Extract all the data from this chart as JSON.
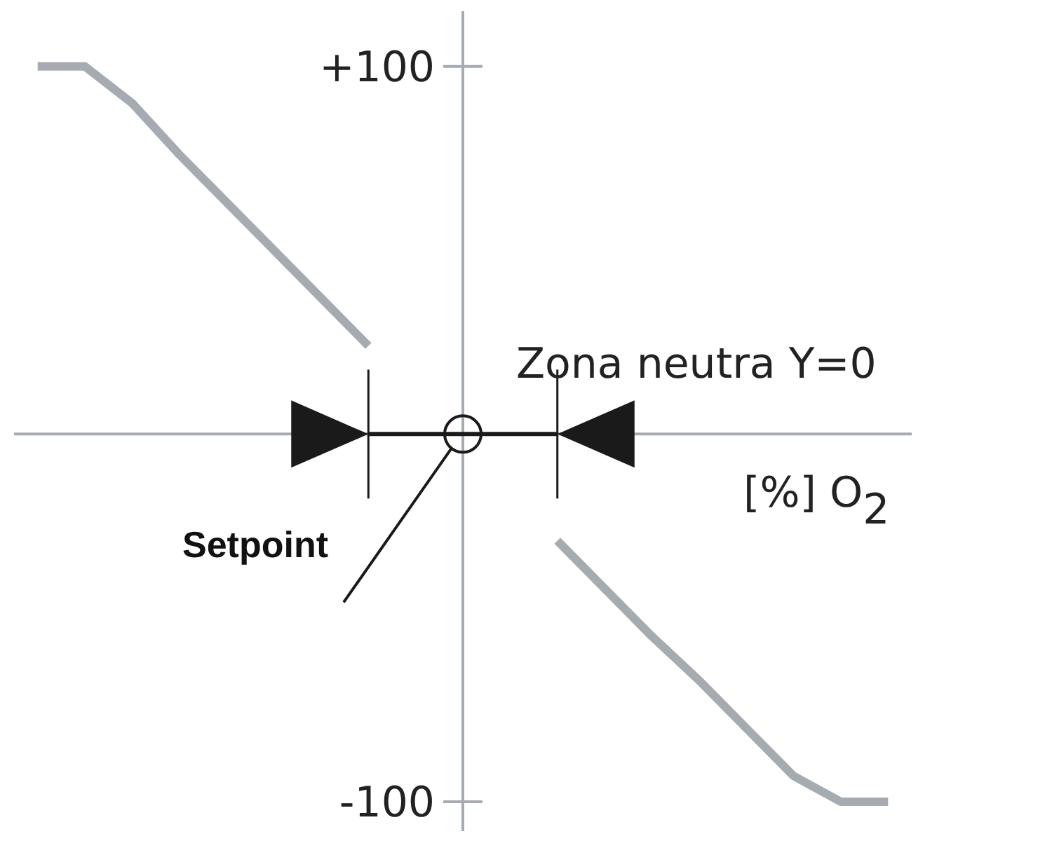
{
  "chart_data": {
    "type": "line",
    "xlabel": "[%] O$_{2}$",
    "annotations": [
      "Zona neutra Y=0",
      "Setpoint"
    ],
    "categories": [
      null,
      null,
      null,
      null,
      null,
      null,
      null,
      null,
      null,
      null,
      null,
      null,
      null,
      null,
      null,
      null,
      null,
      null,
      null
    ],
    "ylim": [
      -108,
      115
    ],
    "yticks": [
      {
        "value": 100,
        "label": "+100"
      },
      {
        "value": -100,
        "label": "-100"
      }
    ],
    "tick_labels": "y",
    "marker": "none",
    "line_style": "solid",
    "series": [
      {
        "color": "#a6abb1",
        "values": [
          100,
          100,
          90,
          76,
          63,
          50,
          37,
          24,
          null,
          null,
          null,
          null,
          null,
          null,
          null,
          null,
          null,
          null,
          null
        ]
      },
      {
        "color": "#1a1a1a",
        "values": [
          null,
          null,
          null,
          null,
          null,
          null,
          null,
          0,
          0,
          0,
          0,
          0,
          null,
          null,
          null,
          null,
          null,
          null,
          null
        ]
      },
      {
        "color": "#a6abb1",
        "values": [
          null,
          null,
          null,
          null,
          null,
          null,
          null,
          null,
          null,
          null,
          null,
          -29,
          -42,
          -55,
          -67,
          -80,
          -93,
          -100,
          -100
        ]
      }
    ]
  }
}
